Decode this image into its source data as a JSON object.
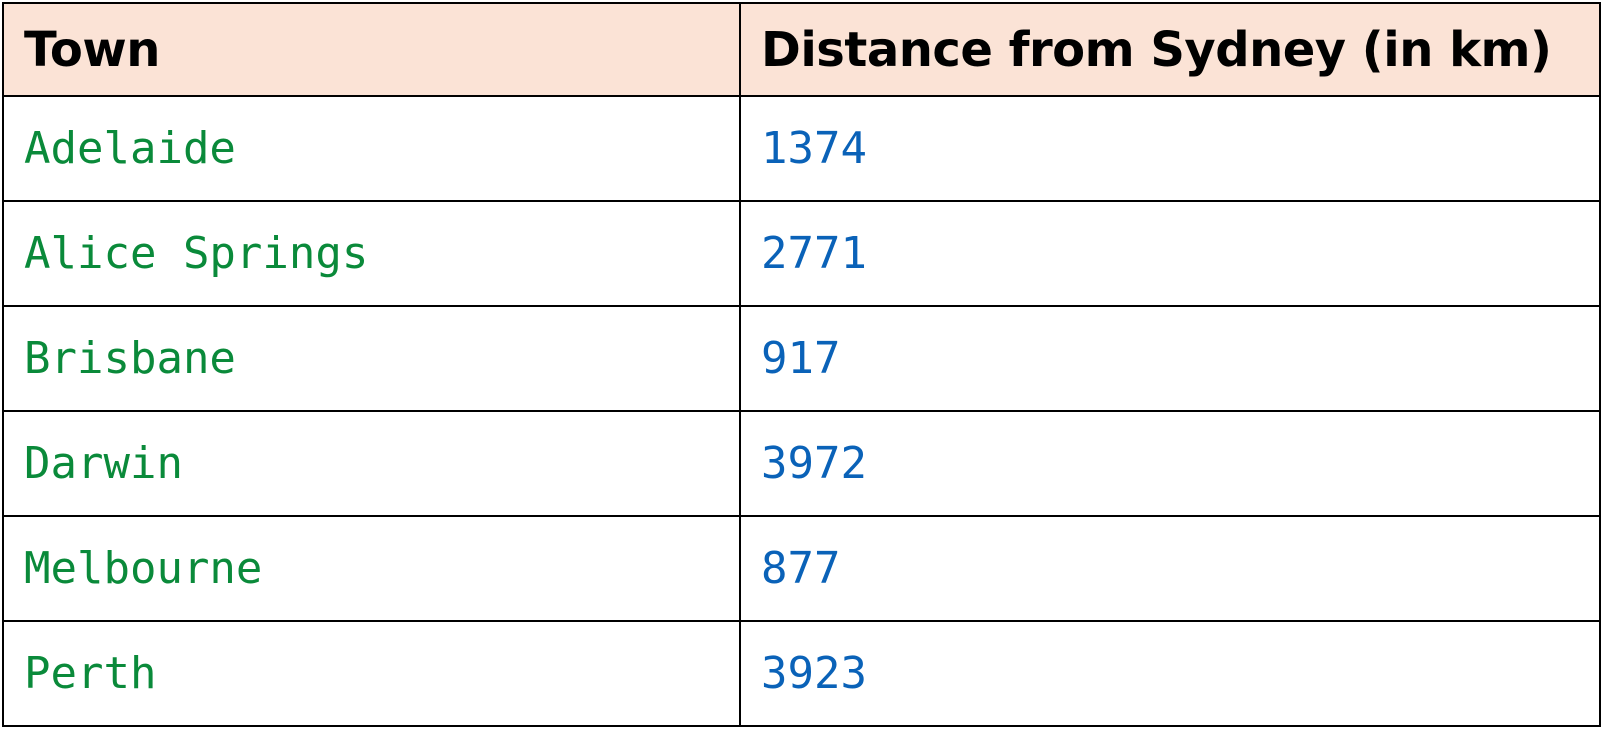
{
  "table": {
    "headers": [
      "Town",
      "Distance from Sydney (in km)"
    ],
    "rows": [
      {
        "town": "Adelaide",
        "distance": "1374"
      },
      {
        "town": "Alice Springs",
        "distance": "2771"
      },
      {
        "town": "Brisbane",
        "distance": "917"
      },
      {
        "town": "Darwin",
        "distance": "3972"
      },
      {
        "town": "Melbourne",
        "distance": "877"
      },
      {
        "town": "Perth",
        "distance": "3923"
      }
    ]
  },
  "colors": {
    "header_background": "#fbe3d6",
    "town_text": "#0a8a3a",
    "distance_text": "#0a62b8",
    "border": "#000000"
  }
}
